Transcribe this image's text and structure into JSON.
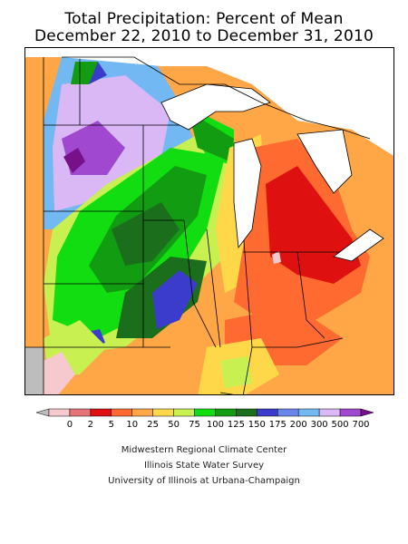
{
  "title": {
    "line1": "Total Precipitation: Percent of Mean",
    "line2": "December 22, 2010 to December 31, 2010"
  },
  "legend": {
    "labels": [
      "0",
      "2",
      "5",
      "10",
      "25",
      "50",
      "75",
      "100",
      "125",
      "150",
      "175",
      "200",
      "300",
      "500",
      "700"
    ],
    "colors": [
      "#bdbdbd",
      "#f5c9cd",
      "#e47478",
      "#de1010",
      "#ff6a30",
      "#ffa646",
      "#ffd84a",
      "#c8f050",
      "#11dd11",
      "#119c11",
      "#1b6e1b",
      "#3c3ccc",
      "#6a86ea",
      "#72b8f2",
      "#d9b8f5",
      "#a048cf",
      "#78108a"
    ]
  },
  "credits": {
    "line1": "Midwestern Regional Climate Center",
    "line2": "Illinois State Water Survey",
    "line3": "University of Illinois at Urbana-Champaign"
  }
}
